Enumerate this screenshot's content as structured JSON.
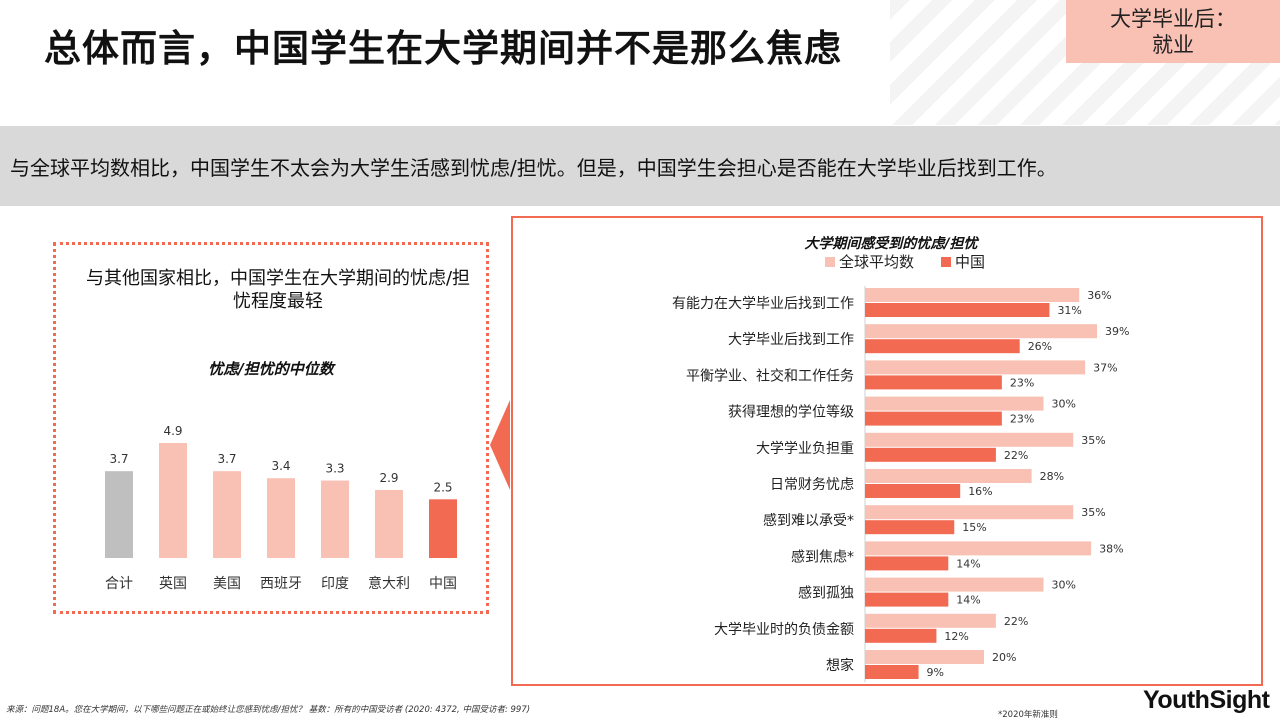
{
  "title": "总体而言，中国学生在大学期间并不是那么焦虑",
  "corner_tag": {
    "line1": "大学毕业后：",
    "line2": "就业"
  },
  "summary": "与全球平均数相比，中国学生不太会为大学生活感到忧虑/担忧。但是，中国学生会担心是否能在大学毕业后找到工作。",
  "left_panel": {
    "heading": "与其他国家相比，中国学生在大学期间的忧虑/担忧程度最轻"
  },
  "source": "来源：问题18A。您在大学期间，以下哪些问题正在或始终让您感到忧虑/担忧？ 基数：所有的中国受访者 (2020: 4372, 中国受访者: 997)",
  "footnote": "*2020年新准则",
  "logo": "YouthSight",
  "colors": {
    "gray": "#bfbfbf",
    "light": "#f9c1b4",
    "dark": "#f26a51",
    "accent": "#f26a51"
  },
  "chart_data": [
    {
      "type": "bar",
      "title": "忧虑/担忧的中位数",
      "categories": [
        "合计",
        "英国",
        "美国",
        "西班牙",
        "印度",
        "意大利",
        "中国"
      ],
      "values": [
        3.7,
        4.9,
        3.7,
        3.4,
        3.3,
        2.9,
        2.5
      ],
      "value_labels": [
        "3.7",
        "4.9",
        "3.7",
        "3.4",
        "3.3",
        "2.9",
        "2.5"
      ],
      "bar_colors": [
        "#bfbfbf",
        "#f9c1b4",
        "#f9c1b4",
        "#f9c1b4",
        "#f9c1b4",
        "#f9c1b4",
        "#f26a51"
      ],
      "ylim": [
        0,
        5
      ]
    },
    {
      "type": "bar",
      "orientation": "horizontal",
      "title": "大学期间感受到的忧虑/担忧",
      "categories": [
        "有能力在大学毕业后找到工作",
        "大学毕业后找到工作",
        "平衡学业、社交和工作任务",
        "获得理想的学位等级",
        "大学学业负担重",
        "日常财务忧虑",
        "感到难以承受*",
        "感到焦虑*",
        "感到孤独",
        "大学毕业时的负债金额",
        "想家"
      ],
      "series": [
        {
          "name": "全球平均数",
          "color": "#f9c1b4",
          "values": [
            36,
            39,
            37,
            30,
            35,
            28,
            35,
            38,
            30,
            22,
            20
          ],
          "labels": [
            "36%",
            "39%",
            "37%",
            "30%",
            "35%",
            "28%",
            "35%",
            "38%",
            "30%",
            "22%",
            "20%"
          ]
        },
        {
          "name": "中国",
          "color": "#f26a51",
          "values": [
            31,
            26,
            23,
            23,
            22,
            16,
            15,
            14,
            14,
            12,
            9
          ],
          "labels": [
            "31%",
            "26%",
            "23%",
            "23%",
            "22%",
            "16%",
            "15%",
            "14%",
            "14%",
            "12%",
            "9%"
          ]
        }
      ],
      "xlim": [
        0,
        50
      ]
    }
  ]
}
